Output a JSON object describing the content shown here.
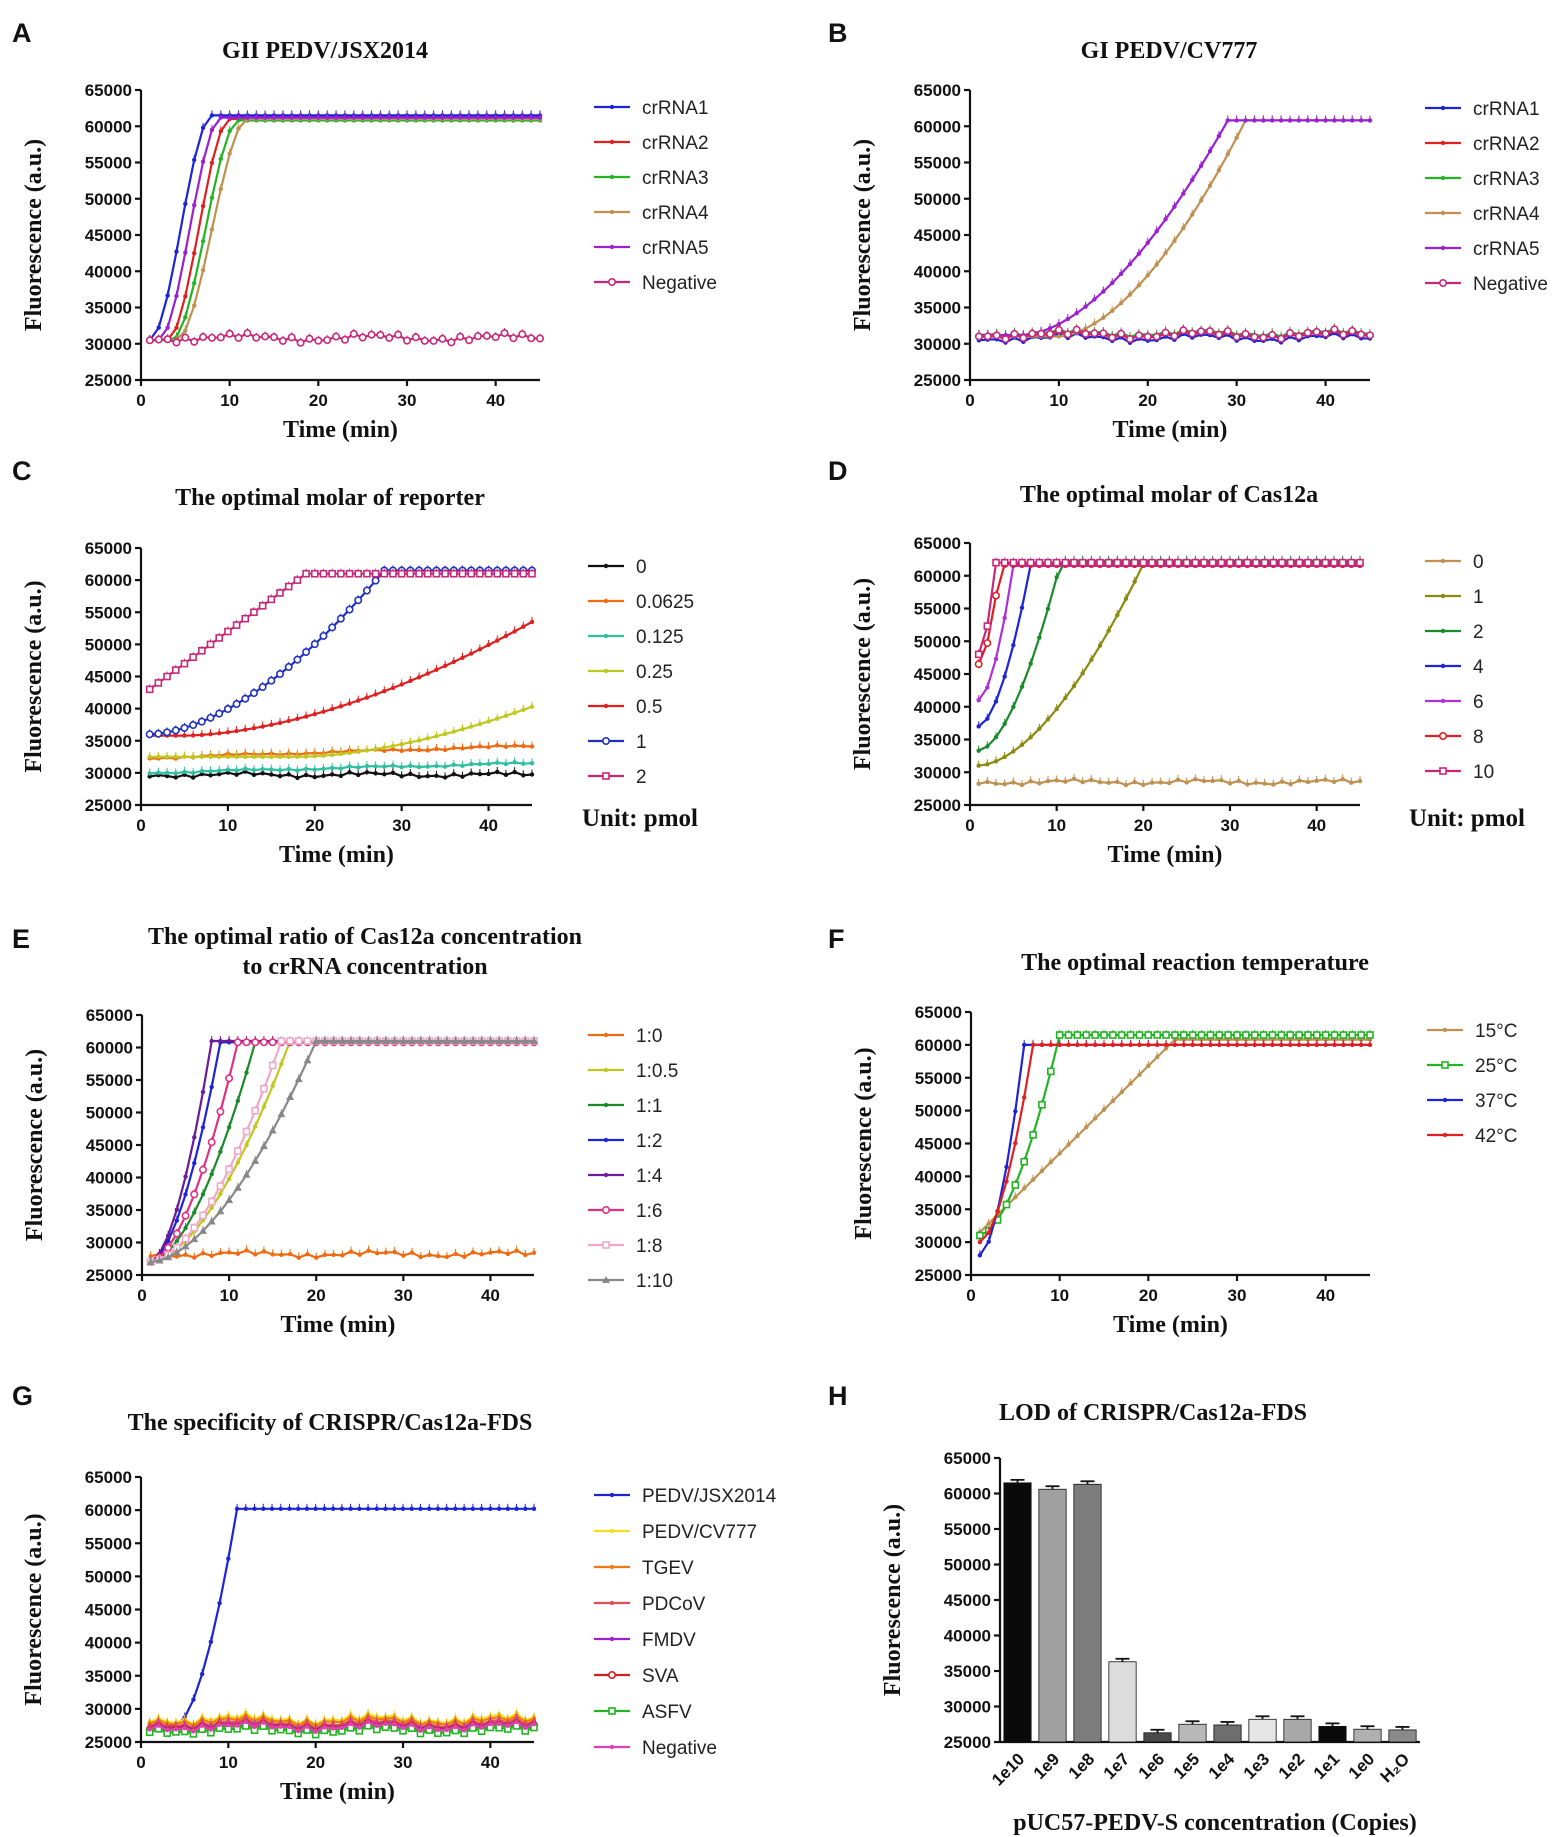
{
  "figure": "fluorescence panels",
  "chart_data": [
    {
      "panel": "A",
      "type": "line",
      "title": "GII PEDV/JSX2014",
      "xlabel": "Time (min)",
      "ylabel": "Fluorescence (a.u.)",
      "xlim": [
        0,
        45
      ],
      "ylim": [
        25000,
        65000
      ],
      "xticks": [
        0,
        10,
        20,
        30,
        40
      ],
      "yticks": [
        25000,
        30000,
        35000,
        40000,
        45000,
        50000,
        55000,
        60000,
        65000
      ],
      "series": [
        {
          "name": "crRNA1",
          "color": "#1d24d8",
          "marker": "dot",
          "kind": "sig",
          "base": 30500,
          "plateau": 61500,
          "t0": 1,
          "t1": 8
        },
        {
          "name": "crRNA2",
          "color": "#e02020",
          "marker": "dot",
          "kind": "sig",
          "base": 30500,
          "plateau": 61000,
          "t0": 3,
          "t1": 10
        },
        {
          "name": "crRNA3",
          "color": "#22b422",
          "marker": "dot",
          "kind": "sig",
          "base": 30500,
          "plateau": 60800,
          "t0": 3.5,
          "t1": 11
        },
        {
          "name": "crRNA4",
          "color": "#c09050",
          "marker": "dot",
          "kind": "sig",
          "base": 30500,
          "plateau": 61000,
          "t0": 4,
          "t1": 12
        },
        {
          "name": "crRNA5",
          "color": "#9a20d0",
          "marker": "dot",
          "kind": "sig",
          "base": 30500,
          "plateau": 61200,
          "t0": 2,
          "t1": 9
        },
        {
          "name": "Negative",
          "color": "#c8287a",
          "marker": "circle",
          "kind": "flat",
          "base": 30800,
          "amp": 700
        }
      ]
    },
    {
      "panel": "B",
      "type": "line",
      "title": "GI PEDV/CV777",
      "xlabel": "Time (min)",
      "ylabel": "Fluorescence (a.u.)",
      "xlim": [
        0,
        45
      ],
      "ylim": [
        25000,
        65000
      ],
      "xticks": [
        0,
        10,
        20,
        30,
        40
      ],
      "yticks": [
        25000,
        30000,
        35000,
        40000,
        45000,
        50000,
        55000,
        60000,
        65000
      ],
      "series": [
        {
          "name": "crRNA1",
          "color": "#1d24d8",
          "marker": "dot",
          "kind": "flat",
          "base": 30800,
          "amp": 700
        },
        {
          "name": "crRNA2",
          "color": "#e02020",
          "marker": "dot",
          "kind": "flat",
          "base": 31200,
          "amp": 600
        },
        {
          "name": "crRNA3",
          "color": "#22b422",
          "marker": "dot",
          "kind": "flat",
          "base": 31500,
          "amp": 600
        },
        {
          "name": "crRNA4",
          "color": "#c09050",
          "marker": "dot",
          "kind": "exp",
          "base": 31000,
          "plateau": 60800,
          "t0": 10,
          "t1": 31
        },
        {
          "name": "crRNA5",
          "color": "#9a20d0",
          "marker": "dot",
          "kind": "exp",
          "base": 31200,
          "plateau": 60800,
          "t0": 6,
          "t1": 29
        },
        {
          "name": "Negative",
          "color": "#c8287a",
          "marker": "circle",
          "kind": "flat",
          "base": 31300,
          "amp": 700
        }
      ]
    },
    {
      "panel": "C",
      "type": "line",
      "title": "The optimal molar of reporter",
      "xlabel": "Time (min)",
      "ylabel": "Fluorescence (a.u.)",
      "xlim": [
        0,
        45
      ],
      "ylim": [
        25000,
        65000
      ],
      "xticks": [
        0,
        10,
        20,
        30,
        40
      ],
      "yticks": [
        25000,
        30000,
        35000,
        40000,
        45000,
        50000,
        55000,
        60000,
        65000
      ],
      "unit_note": "Unit: pmol",
      "series": [
        {
          "name": "0",
          "color": "#111111",
          "marker": "dot",
          "kind": "flat",
          "base": 29700,
          "amp": 500
        },
        {
          "name": "0.0625",
          "color": "#f06a10",
          "marker": "dot",
          "kind": "lin",
          "base": 32300,
          "end": 34200
        },
        {
          "name": "0.125",
          "color": "#30c0a0",
          "marker": "dot",
          "kind": "lin",
          "base": 30000,
          "end": 31500
        },
        {
          "name": "0.25",
          "color": "#c0c820",
          "marker": "dot",
          "kind": "exp",
          "base": 32500,
          "plateau": 40300,
          "t0": 18,
          "t1": 45
        },
        {
          "name": "0.5",
          "color": "#e02020",
          "marker": "dot",
          "kind": "exp",
          "base": 35800,
          "plateau": 53500,
          "t0": 5,
          "t1": 45
        },
        {
          "name": "1",
          "color": "#2030c0",
          "marker": "circle",
          "kind": "exp",
          "base": 36000,
          "plateau": 61500,
          "t0": 1,
          "t1": 28
        },
        {
          "name": "2",
          "color": "#c8287a",
          "marker": "square",
          "kind": "lin2",
          "base": 43000,
          "plateau": 61000,
          "t0": 1,
          "t1": 19
        }
      ]
    },
    {
      "panel": "D",
      "type": "line",
      "title": "The optimal molar of Cas12a",
      "xlabel": "Time (min)",
      "ylabel": "Fluorescence (a.u.)",
      "xlim": [
        0,
        45
      ],
      "ylim": [
        25000,
        65000
      ],
      "xticks": [
        0,
        10,
        20,
        30,
        40
      ],
      "yticks": [
        25000,
        30000,
        35000,
        40000,
        45000,
        50000,
        55000,
        60000,
        65000
      ],
      "unit_note": "Unit: pmol",
      "series": [
        {
          "name": "0",
          "color": "#c09050",
          "marker": "dot",
          "kind": "flat",
          "base": 28500,
          "amp": 500
        },
        {
          "name": "1",
          "color": "#8a8a10",
          "marker": "dot",
          "kind": "exp",
          "base": 31000,
          "plateau": 61800,
          "t0": 1,
          "t1": 20
        },
        {
          "name": "2",
          "color": "#1a8a2a",
          "marker": "dot",
          "kind": "exp",
          "base": 33300,
          "plateau": 62300,
          "t0": 1,
          "t1": 10.5
        },
        {
          "name": "4",
          "color": "#1d24d8",
          "marker": "dot",
          "kind": "exp",
          "base": 37000,
          "plateau": 61700,
          "t0": 1,
          "t1": 7
        },
        {
          "name": "6",
          "color": "#b030d8",
          "marker": "dot",
          "kind": "exp",
          "base": 41000,
          "plateau": 61500,
          "t0": 1,
          "t1": 5
        },
        {
          "name": "8",
          "color": "#e02020",
          "marker": "circle",
          "kind": "exp",
          "base": 46500,
          "plateau": 61800,
          "t0": 1,
          "t1": 3.5
        },
        {
          "name": "10",
          "color": "#c8287a",
          "marker": "square",
          "kind": "exp",
          "base": 48000,
          "plateau": 62000,
          "t0": 1,
          "t1": 3
        }
      ]
    },
    {
      "panel": "E",
      "type": "line",
      "title": "The optimal ratio of Cas12a concentration",
      "title_line2": "to crRNA concentration",
      "xlabel": "Time (min)",
      "ylabel": "Fluorescence (a.u.)",
      "xlim": [
        0,
        45
      ],
      "ylim": [
        25000,
        65000
      ],
      "xticks": [
        0,
        10,
        20,
        30,
        40
      ],
      "yticks": [
        25000,
        30000,
        35000,
        40000,
        45000,
        50000,
        55000,
        60000,
        65000
      ],
      "series": [
        {
          "name": "1:0",
          "color": "#f06a10",
          "marker": "dot",
          "kind": "flat",
          "base": 28200,
          "amp": 600
        },
        {
          "name": "1:0.5",
          "color": "#c0c820",
          "marker": "dot",
          "kind": "exp",
          "base": 27000,
          "plateau": 61000,
          "t0": 1,
          "t1": 17
        },
        {
          "name": "1:1",
          "color": "#1a8a2a",
          "marker": "dot",
          "kind": "exp",
          "base": 27000,
          "plateau": 60800,
          "t0": 1,
          "t1": 13
        },
        {
          "name": "1:2",
          "color": "#1d24d8",
          "marker": "dot",
          "kind": "exp",
          "base": 27000,
          "plateau": 60800,
          "t0": 1,
          "t1": 9
        },
        {
          "name": "1:4",
          "color": "#6a1a9a",
          "marker": "dot",
          "kind": "exp",
          "base": 27000,
          "plateau": 61000,
          "t0": 1,
          "t1": 8
        },
        {
          "name": "1:6",
          "color": "#e03080",
          "marker": "circle",
          "kind": "exp",
          "base": 27000,
          "plateau": 60800,
          "t0": 1,
          "t1": 11
        },
        {
          "name": "1:8",
          "color": "#f0a8c8",
          "marker": "square",
          "kind": "exp",
          "base": 27000,
          "plateau": 61000,
          "t0": 1,
          "t1": 16
        },
        {
          "name": "1:10",
          "color": "#888888",
          "marker": "triangle",
          "kind": "exp",
          "base": 27000,
          "plateau": 61000,
          "t0": 1,
          "t1": 20
        }
      ]
    },
    {
      "panel": "F",
      "type": "line",
      "title": "The optimal reaction temperature",
      "xlabel": "Time (min)",
      "ylabel": "Fluorescence (a.u.)",
      "xlim": [
        0,
        45
      ],
      "ylim": [
        25000,
        65000
      ],
      "xticks": [
        0,
        10,
        20,
        30,
        40
      ],
      "yticks": [
        25000,
        30000,
        35000,
        40000,
        45000,
        50000,
        55000,
        60000,
        65000
      ],
      "series": [
        {
          "name": "15°C",
          "color": "#c09050",
          "marker": "dot",
          "kind": "lin2",
          "base": 31500,
          "plateau": 60800,
          "t0": 1,
          "t1": 23
        },
        {
          "name": "25°C",
          "color": "#22b422",
          "marker": "square",
          "kind": "exp",
          "base": 31000,
          "plateau": 61500,
          "t0": 1,
          "t1": 10
        },
        {
          "name": "37°C",
          "color": "#1d24d8",
          "marker": "dot",
          "kind": "exp",
          "base": 28000,
          "plateau": 60000,
          "t0": 1,
          "t1": 6
        },
        {
          "name": "42°C",
          "color": "#e02020",
          "marker": "dot",
          "kind": "exp",
          "base": 30000,
          "plateau": 60000,
          "t0": 1,
          "t1": 7
        }
      ]
    },
    {
      "panel": "G",
      "type": "line",
      "title": "The specificity of CRISPR/Cas12a-FDS",
      "xlabel": "Time (min)",
      "ylabel": "Fluorescence (a.u.)",
      "xlim": [
        0,
        45
      ],
      "ylim": [
        25000,
        65000
      ],
      "xticks": [
        0,
        10,
        20,
        30,
        40
      ],
      "yticks": [
        25000,
        30000,
        35000,
        40000,
        45000,
        50000,
        55000,
        60000,
        65000
      ],
      "series": [
        {
          "name": "PEDV/JSX2014",
          "color": "#1d24d8",
          "marker": "dot",
          "kind": "exp",
          "base": 27500,
          "plateau": 60200,
          "t0": 4,
          "t1": 11
        },
        {
          "name": "PEDV/CV777",
          "color": "#f0e020",
          "marker": "dot",
          "kind": "flat",
          "base": 28500,
          "amp": 900
        },
        {
          "name": "TGEV",
          "color": "#f07a10",
          "marker": "dot",
          "kind": "flat",
          "base": 28200,
          "amp": 800
        },
        {
          "name": "PDCoV",
          "color": "#e05050",
          "marker": "dot",
          "kind": "flat",
          "base": 27800,
          "amp": 800
        },
        {
          "name": "FMDV",
          "color": "#9a20d0",
          "marker": "dot",
          "kind": "flat",
          "base": 27500,
          "amp": 700
        },
        {
          "name": "SVA",
          "color": "#d02020",
          "marker": "circle",
          "kind": "flat",
          "base": 27200,
          "amp": 700
        },
        {
          "name": "ASFV",
          "color": "#22b422",
          "marker": "square",
          "kind": "flat",
          "base": 26800,
          "amp": 700
        },
        {
          "name": "Negative",
          "color": "#e040b0",
          "marker": "dot",
          "kind": "flat",
          "base": 27300,
          "amp": 800
        }
      ]
    },
    {
      "panel": "H",
      "type": "bar",
      "title": "LOD of CRISPR/Cas12a-FDS",
      "xlabel": "pUC57-PEDV-S concentration (Copies)",
      "ylabel": "Fluorescence (a.u.)",
      "ylim": [
        25000,
        65000
      ],
      "yticks": [
        25000,
        30000,
        35000,
        40000,
        45000,
        50000,
        55000,
        60000,
        65000
      ],
      "categories": [
        "1e10",
        "1e9",
        "1e8",
        "1e7",
        "1e6",
        "1e5",
        "1e4",
        "1e3",
        "1e2",
        "1e1",
        "1e0",
        "H₂O"
      ],
      "values": [
        61500,
        60600,
        61300,
        36300,
        26300,
        27500,
        27400,
        28200,
        28200,
        27200,
        26800,
        26700
      ],
      "colors": [
        "#0a0a0a",
        "#a0a0a0",
        "#7c7c7c",
        "#dcdcdc",
        "#4a4a4a",
        "#b8b8b8",
        "#6e6e6e",
        "#e6e6e6",
        "#a8a8a8",
        "#0a0a0a",
        "#b0b0b0",
        "#8a8a8a"
      ]
    }
  ]
}
